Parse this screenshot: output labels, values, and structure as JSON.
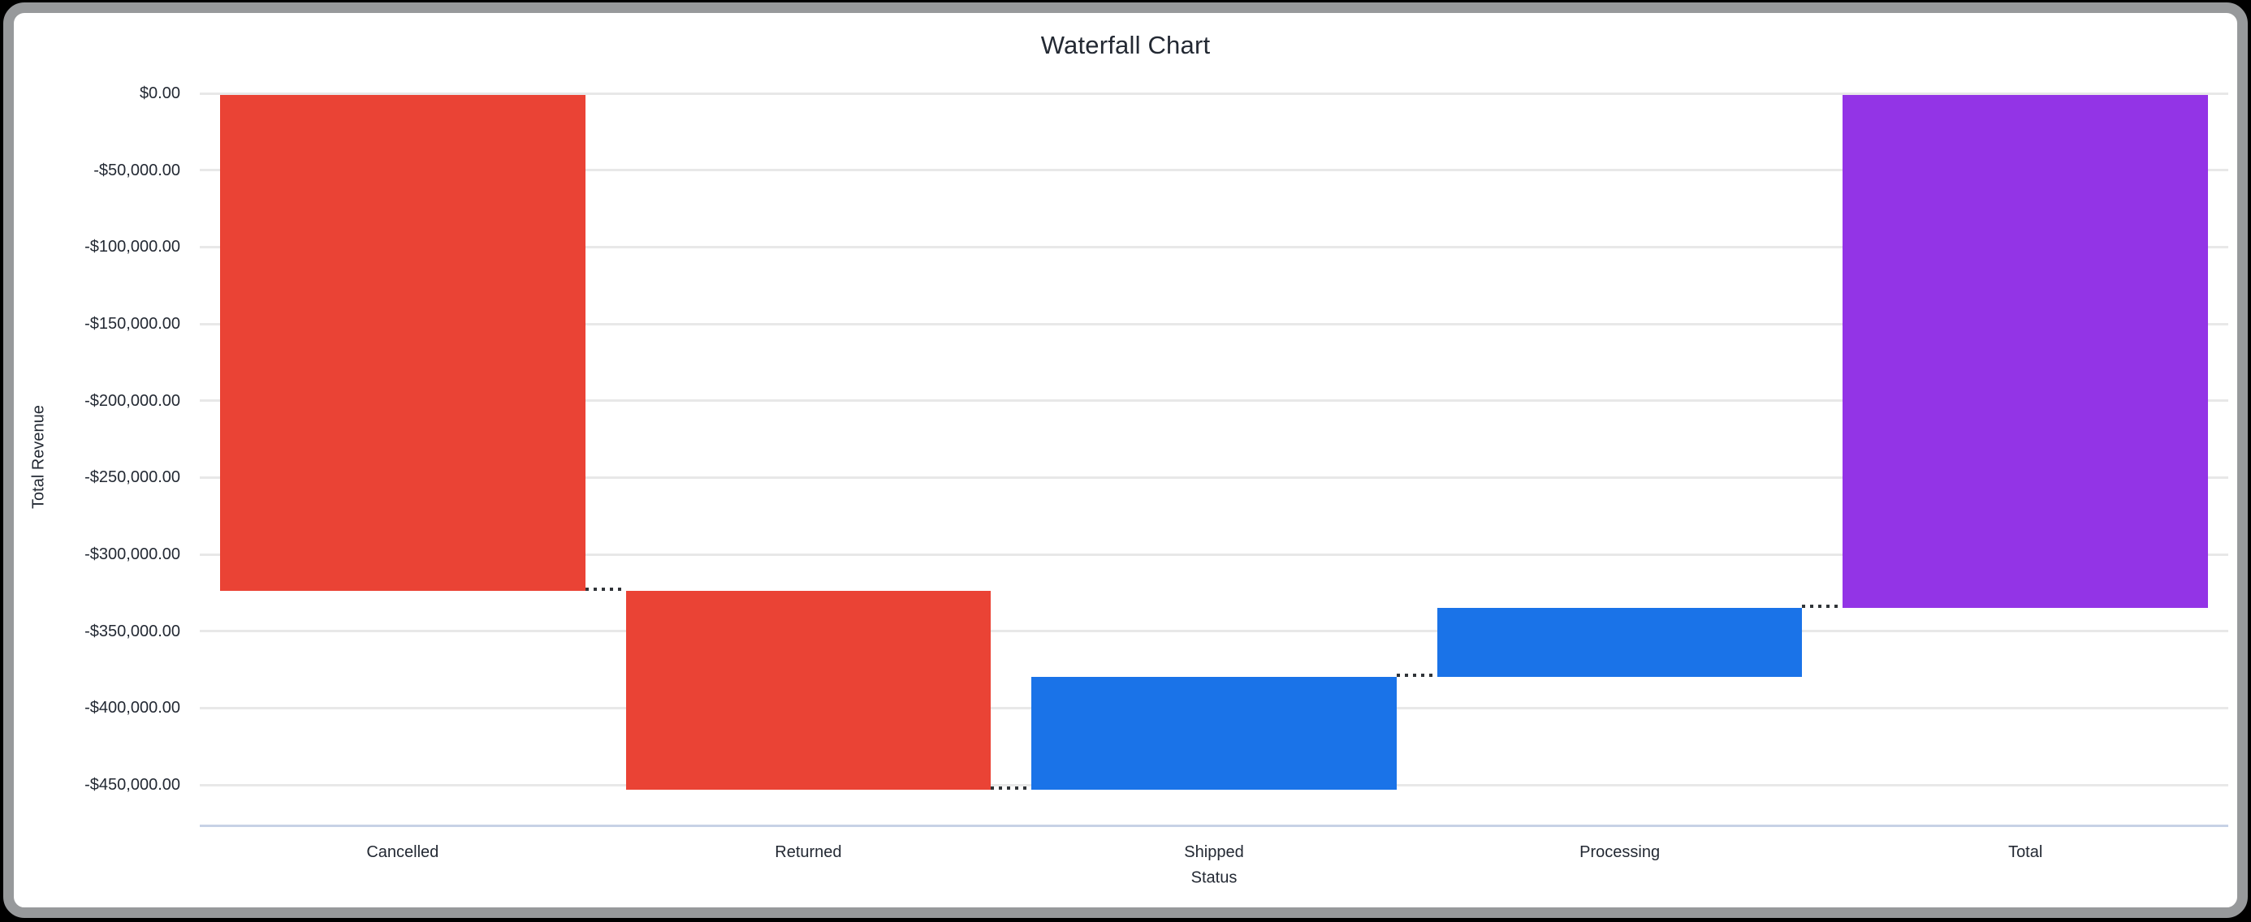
{
  "window": {
    "background": "#000000",
    "frame_color": "#97999b",
    "card_background": "#ffffff"
  },
  "chart_data": {
    "type": "waterfall",
    "title": "Waterfall Chart",
    "xlabel": "Status",
    "ylabel": "Total Revenue",
    "categories": [
      "Cancelled",
      "Returned",
      "Shipped",
      "Processing",
      "Total"
    ],
    "series": [
      {
        "name": "Cancelled",
        "delta": -324000,
        "cumulative_start": 0,
        "cumulative_end": -324000,
        "role": "decrease",
        "color": "#ea4335"
      },
      {
        "name": "Returned",
        "delta": -129000,
        "cumulative_start": -324000,
        "cumulative_end": -453000,
        "role": "decrease",
        "color": "#ea4335"
      },
      {
        "name": "Shipped",
        "delta": 73000,
        "cumulative_start": -453000,
        "cumulative_end": -380000,
        "role": "increase",
        "color": "#1a73e8"
      },
      {
        "name": "Processing",
        "delta": 45000,
        "cumulative_start": -380000,
        "cumulative_end": -335000,
        "role": "increase",
        "color": "#1a73e8"
      },
      {
        "name": "Total",
        "delta": -335000,
        "cumulative_start": 0,
        "cumulative_end": -335000,
        "role": "total",
        "color": "#9334e6"
      }
    ],
    "y_axis": {
      "range": [
        0,
        -475000
      ],
      "ticks": [
        {
          "value": 0,
          "label": "$0.00"
        },
        {
          "value": -50000,
          "label": "-$50,000.00"
        },
        {
          "value": -100000,
          "label": "-$100,000.00"
        },
        {
          "value": -150000,
          "label": "-$150,000.00"
        },
        {
          "value": -200000,
          "label": "-$200,000.00"
        },
        {
          "value": -250000,
          "label": "-$250,000.00"
        },
        {
          "value": -300000,
          "label": "-$300,000.00"
        },
        {
          "value": -350000,
          "label": "-$350,000.00"
        },
        {
          "value": -400000,
          "label": "-$400,000.00"
        },
        {
          "value": -450000,
          "label": "-$450,000.00"
        }
      ]
    },
    "legend": false,
    "grid": true,
    "colors": {
      "gridline": "#e8e8e8",
      "axis_line": "#c7d2e6",
      "connector": "#303438",
      "text": "#232933"
    }
  }
}
